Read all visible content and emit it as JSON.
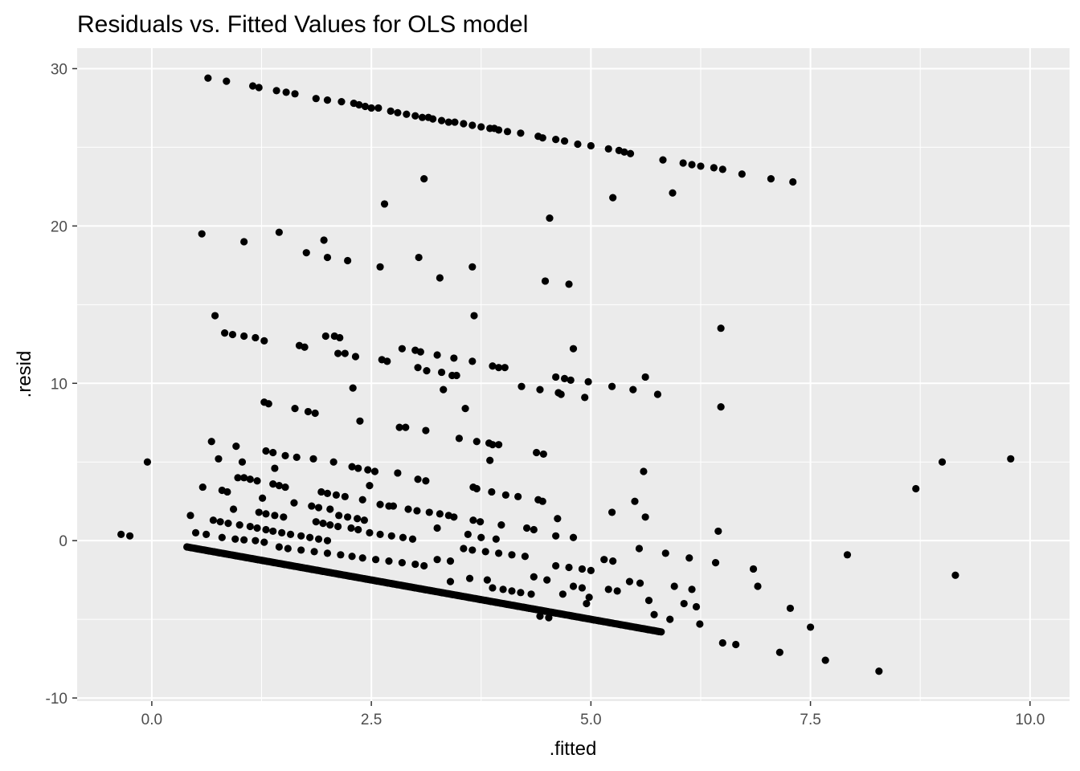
{
  "chart_data": {
    "type": "scatter",
    "title": "Residuals vs. Fitted Values for OLS model",
    "xlabel": ".fitted",
    "ylabel": ".resid",
    "xlim": [
      -0.85,
      10.45
    ],
    "ylim": [
      -10.2,
      31.3
    ],
    "x_ticks": [
      0.0,
      2.5,
      5.0,
      7.5,
      10.0
    ],
    "x_tick_labels": [
      "0.0",
      "2.5",
      "5.0",
      "7.5",
      "10.0"
    ],
    "y_ticks": [
      -10,
      0,
      10,
      20,
      30
    ],
    "y_tick_labels": [
      "-10",
      "0",
      "10",
      "20",
      "30"
    ],
    "grid": true,
    "colors": {
      "panel": "#ebebeb",
      "grid": "#ffffff",
      "point": "#000000",
      "tick": "#333333"
    },
    "points": [
      [
        0.64,
        29.4
      ],
      [
        0.85,
        29.2
      ],
      [
        1.15,
        28.9
      ],
      [
        1.22,
        28.8
      ],
      [
        1.42,
        28.6
      ],
      [
        1.53,
        28.5
      ],
      [
        1.63,
        28.4
      ],
      [
        1.87,
        28.1
      ],
      [
        2.0,
        28.0
      ],
      [
        2.16,
        27.9
      ],
      [
        2.3,
        27.8
      ],
      [
        2.36,
        27.7
      ],
      [
        2.43,
        27.6
      ],
      [
        2.5,
        27.5
      ],
      [
        2.58,
        27.5
      ],
      [
        2.72,
        27.3
      ],
      [
        2.8,
        27.2
      ],
      [
        2.9,
        27.1
      ],
      [
        3.0,
        27.0
      ],
      [
        3.08,
        26.9
      ],
      [
        3.15,
        26.9
      ],
      [
        3.2,
        26.8
      ],
      [
        3.3,
        26.7
      ],
      [
        3.38,
        26.6
      ],
      [
        3.45,
        26.6
      ],
      [
        3.55,
        26.5
      ],
      [
        3.65,
        26.4
      ],
      [
        3.75,
        26.3
      ],
      [
        3.85,
        26.2
      ],
      [
        3.9,
        26.2
      ],
      [
        3.95,
        26.1
      ],
      [
        4.05,
        26.0
      ],
      [
        4.2,
        25.9
      ],
      [
        4.4,
        25.7
      ],
      [
        4.45,
        25.6
      ],
      [
        4.6,
        25.5
      ],
      [
        4.7,
        25.4
      ],
      [
        4.85,
        25.2
      ],
      [
        5.0,
        25.1
      ],
      [
        5.2,
        24.9
      ],
      [
        5.32,
        24.8
      ],
      [
        5.38,
        24.7
      ],
      [
        5.45,
        24.6
      ],
      [
        5.82,
        24.2
      ],
      [
        6.05,
        24.0
      ],
      [
        6.15,
        23.9
      ],
      [
        6.25,
        23.8
      ],
      [
        6.4,
        23.7
      ],
      [
        6.5,
        23.6
      ],
      [
        6.72,
        23.3
      ],
      [
        7.05,
        23.0
      ],
      [
        7.3,
        22.8
      ],
      [
        3.1,
        23.0
      ],
      [
        5.25,
        21.8
      ],
      [
        5.93,
        22.1
      ],
      [
        2.65,
        21.4
      ],
      [
        4.53,
        20.5
      ],
      [
        0.57,
        19.5
      ],
      [
        1.05,
        19.0
      ],
      [
        1.45,
        19.6
      ],
      [
        1.96,
        19.1
      ],
      [
        1.76,
        18.3
      ],
      [
        2.0,
        18.0
      ],
      [
        2.23,
        17.8
      ],
      [
        3.04,
        18.0
      ],
      [
        2.6,
        17.4
      ],
      [
        3.65,
        17.4
      ],
      [
        3.28,
        16.7
      ],
      [
        4.48,
        16.5
      ],
      [
        4.75,
        16.3
      ],
      [
        0.72,
        14.3
      ],
      [
        3.67,
        14.3
      ],
      [
        6.48,
        13.5
      ],
      [
        0.83,
        13.2
      ],
      [
        0.92,
        13.1
      ],
      [
        1.05,
        13.0
      ],
      [
        1.18,
        12.9
      ],
      [
        1.28,
        12.7
      ],
      [
        1.98,
        13.0
      ],
      [
        2.08,
        13.0
      ],
      [
        2.14,
        12.9
      ],
      [
        1.68,
        12.4
      ],
      [
        1.74,
        12.3
      ],
      [
        2.12,
        11.9
      ],
      [
        2.2,
        11.9
      ],
      [
        2.32,
        11.7
      ],
      [
        2.62,
        11.5
      ],
      [
        2.68,
        11.4
      ],
      [
        2.85,
        12.2
      ],
      [
        3.0,
        12.1
      ],
      [
        3.06,
        12.0
      ],
      [
        3.25,
        11.8
      ],
      [
        3.44,
        11.6
      ],
      [
        3.65,
        11.4
      ],
      [
        3.88,
        11.1
      ],
      [
        3.95,
        11.0
      ],
      [
        4.02,
        11.0
      ],
      [
        3.03,
        11.0
      ],
      [
        3.13,
        10.8
      ],
      [
        3.3,
        10.7
      ],
      [
        3.42,
        10.5
      ],
      [
        3.47,
        10.5
      ],
      [
        4.8,
        12.2
      ],
      [
        4.6,
        10.4
      ],
      [
        4.7,
        10.3
      ],
      [
        4.77,
        10.2
      ],
      [
        4.97,
        10.1
      ],
      [
        5.62,
        10.4
      ],
      [
        4.21,
        9.8
      ],
      [
        4.42,
        9.6
      ],
      [
        5.24,
        9.8
      ],
      [
        5.48,
        9.6
      ],
      [
        5.76,
        9.3
      ],
      [
        4.63,
        9.4
      ],
      [
        4.66,
        9.3
      ],
      [
        4.93,
        9.1
      ],
      [
        2.29,
        9.7
      ],
      [
        3.32,
        9.6
      ],
      [
        6.48,
        8.5
      ],
      [
        3.57,
        8.4
      ],
      [
        1.28,
        8.8
      ],
      [
        1.33,
        8.7
      ],
      [
        1.63,
        8.4
      ],
      [
        1.78,
        8.2
      ],
      [
        1.86,
        8.1
      ],
      [
        2.37,
        7.6
      ],
      [
        2.82,
        7.2
      ],
      [
        2.89,
        7.2
      ],
      [
        3.12,
        7.0
      ],
      [
        3.5,
        6.5
      ],
      [
        0.68,
        6.3
      ],
      [
        0.96,
        6.0
      ],
      [
        0.76,
        5.2
      ],
      [
        1.03,
        5.0
      ],
      [
        -0.05,
        5.0
      ],
      [
        1.3,
        5.7
      ],
      [
        1.38,
        5.6
      ],
      [
        1.52,
        5.4
      ],
      [
        1.65,
        5.3
      ],
      [
        1.84,
        5.2
      ],
      [
        2.07,
        5.0
      ],
      [
        2.28,
        4.7
      ],
      [
        2.35,
        4.6
      ],
      [
        2.46,
        4.5
      ],
      [
        2.54,
        4.4
      ],
      [
        2.8,
        4.3
      ],
      [
        3.7,
        6.3
      ],
      [
        3.84,
        6.2
      ],
      [
        3.88,
        6.1
      ],
      [
        3.95,
        6.1
      ],
      [
        3.85,
        5.1
      ],
      [
        4.38,
        5.6
      ],
      [
        4.46,
        5.5
      ],
      [
        5.6,
        4.4
      ],
      [
        1.4,
        4.6
      ],
      [
        0.98,
        4.0
      ],
      [
        1.05,
        4.0
      ],
      [
        1.12,
        3.9
      ],
      [
        1.2,
        3.8
      ],
      [
        1.38,
        3.6
      ],
      [
        1.45,
        3.5
      ],
      [
        1.52,
        3.4
      ],
      [
        3.03,
        3.9
      ],
      [
        3.12,
        3.8
      ],
      [
        2.48,
        3.5
      ],
      [
        0.58,
        3.4
      ],
      [
        0.8,
        3.2
      ],
      [
        0.86,
        3.1
      ],
      [
        1.93,
        3.1
      ],
      [
        2.0,
        3.0
      ],
      [
        2.1,
        2.9
      ],
      [
        2.2,
        2.8
      ],
      [
        2.4,
        2.6
      ],
      [
        1.26,
        2.7
      ],
      [
        1.62,
        2.4
      ],
      [
        1.82,
        2.2
      ],
      [
        1.9,
        2.1
      ],
      [
        2.03,
        2.0
      ],
      [
        2.6,
        2.3
      ],
      [
        2.7,
        2.2
      ],
      [
        2.75,
        2.2
      ],
      [
        2.92,
        2.0
      ],
      [
        3.02,
        1.9
      ],
      [
        3.16,
        1.8
      ],
      [
        3.28,
        1.7
      ],
      [
        3.38,
        1.6
      ],
      [
        3.44,
        1.5
      ],
      [
        3.66,
        3.4
      ],
      [
        3.7,
        3.3
      ],
      [
        3.87,
        3.1
      ],
      [
        4.03,
        2.9
      ],
      [
        4.17,
        2.8
      ],
      [
        4.4,
        2.6
      ],
      [
        4.45,
        2.5
      ],
      [
        5.5,
        2.5
      ],
      [
        0.93,
        2.0
      ],
      [
        1.22,
        1.8
      ],
      [
        1.3,
        1.7
      ],
      [
        1.4,
        1.6
      ],
      [
        1.5,
        1.5
      ],
      [
        2.13,
        1.6
      ],
      [
        2.23,
        1.5
      ],
      [
        2.34,
        1.4
      ],
      [
        2.42,
        1.3
      ],
      [
        0.44,
        1.6
      ],
      [
        0.7,
        1.3
      ],
      [
        0.78,
        1.2
      ],
      [
        0.87,
        1.1
      ],
      [
        1.0,
        1.0
      ],
      [
        1.12,
        0.9
      ],
      [
        1.2,
        0.8
      ],
      [
        1.3,
        0.7
      ],
      [
        1.38,
        0.6
      ],
      [
        1.48,
        0.5
      ],
      [
        1.58,
        0.4
      ],
      [
        1.7,
        0.3
      ],
      [
        1.8,
        0.2
      ],
      [
        1.9,
        0.1
      ],
      [
        2.0,
        0.0
      ],
      [
        3.66,
        1.3
      ],
      [
        3.74,
        1.2
      ],
      [
        3.98,
        1.0
      ],
      [
        4.27,
        0.8
      ],
      [
        4.35,
        0.7
      ],
      [
        4.62,
        1.4
      ],
      [
        5.24,
        1.8
      ],
      [
        5.62,
        1.5
      ],
      [
        6.45,
        0.6
      ],
      [
        1.87,
        1.2
      ],
      [
        1.95,
        1.1
      ],
      [
        2.03,
        1.0
      ],
      [
        2.12,
        0.9
      ],
      [
        2.27,
        0.8
      ],
      [
        2.35,
        0.7
      ],
      [
        2.48,
        0.5
      ],
      [
        2.6,
        0.4
      ],
      [
        2.73,
        0.3
      ],
      [
        2.86,
        0.2
      ],
      [
        2.97,
        0.1
      ],
      [
        3.25,
        0.8
      ],
      [
        3.6,
        0.4
      ],
      [
        3.75,
        0.2
      ],
      [
        3.92,
        0.1
      ],
      [
        4.6,
        0.3
      ],
      [
        4.8,
        0.2
      ],
      [
        -0.35,
        0.4
      ],
      [
        -0.25,
        0.3
      ],
      [
        0.5,
        0.5
      ],
      [
        0.62,
        0.4
      ],
      [
        0.8,
        0.2
      ],
      [
        0.95,
        0.1
      ],
      [
        1.05,
        0.05
      ],
      [
        1.18,
        0.0
      ],
      [
        1.28,
        -0.1
      ],
      [
        1.45,
        -0.4
      ],
      [
        1.55,
        -0.5
      ],
      [
        1.7,
        -0.6
      ],
      [
        1.85,
        -0.7
      ],
      [
        2.0,
        -0.8
      ],
      [
        2.15,
        -0.9
      ],
      [
        2.28,
        -1.0
      ],
      [
        2.4,
        -1.1
      ],
      [
        2.55,
        -1.2
      ],
      [
        2.7,
        -1.3
      ],
      [
        2.85,
        -1.4
      ],
      [
        3.0,
        -1.5
      ],
      [
        3.1,
        -1.6
      ],
      [
        3.25,
        -1.2
      ],
      [
        3.4,
        -1.3
      ],
      [
        3.55,
        -0.5
      ],
      [
        3.65,
        -0.6
      ],
      [
        3.8,
        -0.7
      ],
      [
        3.95,
        -0.8
      ],
      [
        4.1,
        -0.9
      ],
      [
        4.25,
        -1.0
      ],
      [
        4.6,
        -1.6
      ],
      [
        4.75,
        -1.7
      ],
      [
        4.9,
        -1.8
      ],
      [
        5.0,
        -1.9
      ],
      [
        5.15,
        -1.2
      ],
      [
        5.25,
        -1.3
      ],
      [
        5.55,
        -0.5
      ],
      [
        5.85,
        -0.8
      ],
      [
        6.12,
        -1.1
      ],
      [
        6.42,
        -1.4
      ],
      [
        6.85,
        -1.8
      ],
      [
        7.92,
        -0.9
      ],
      [
        5.2,
        -3.1
      ],
      [
        5.3,
        -3.2
      ],
      [
        5.44,
        -2.6
      ],
      [
        5.56,
        -2.7
      ],
      [
        5.66,
        -3.8
      ],
      [
        5.72,
        -4.7
      ],
      [
        5.9,
        -5.0
      ],
      [
        5.95,
        -2.9
      ],
      [
        6.15,
        -3.1
      ],
      [
        6.2,
        -4.2
      ],
      [
        6.24,
        -5.3
      ],
      [
        6.06,
        -4.0
      ],
      [
        6.9,
        -2.9
      ],
      [
        7.27,
        -4.3
      ],
      [
        7.5,
        -5.5
      ],
      [
        9.15,
        -2.2
      ],
      [
        4.68,
        -3.4
      ],
      [
        4.8,
        -2.9
      ],
      [
        4.9,
        -3.0
      ],
      [
        4.98,
        -3.6
      ],
      [
        4.95,
        -4.0
      ],
      [
        3.4,
        -2.6
      ],
      [
        3.62,
        -2.4
      ],
      [
        3.82,
        -2.5
      ],
      [
        3.88,
        -3.0
      ],
      [
        4.0,
        -3.1
      ],
      [
        4.1,
        -3.2
      ],
      [
        4.2,
        -3.3
      ],
      [
        4.32,
        -3.4
      ],
      [
        4.35,
        -2.3
      ],
      [
        4.5,
        -2.5
      ],
      [
        4.42,
        -4.8
      ],
      [
        4.52,
        -4.9
      ],
      [
        6.5,
        -6.5
      ],
      [
        6.65,
        -6.6
      ],
      [
        7.15,
        -7.1
      ],
      [
        7.67,
        -7.6
      ],
      [
        8.28,
        -8.3
      ],
      [
        8.7,
        3.3
      ],
      [
        9.0,
        5.0
      ],
      [
        9.78,
        5.2
      ]
    ],
    "band": {
      "x_start": 0.4,
      "x_end": 5.8,
      "slope": -1.0,
      "intercept": 0.0,
      "count": 300
    }
  }
}
